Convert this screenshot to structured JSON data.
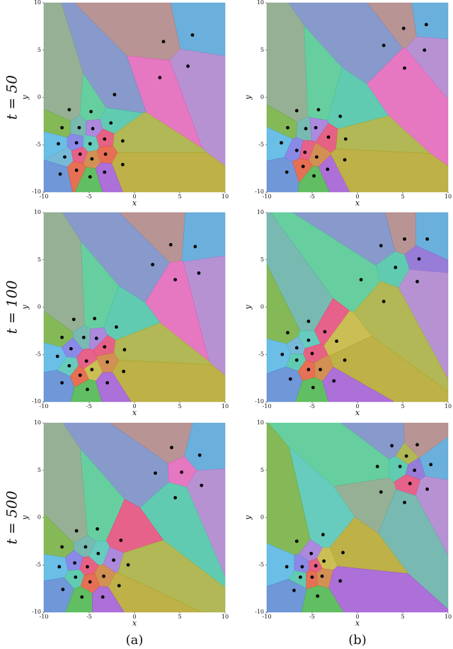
{
  "row_labels": [
    "t = 50",
    "t = 100",
    "t = 500"
  ],
  "column_labels": [
    "(a)",
    "(b)"
  ],
  "chart_data": [
    {
      "type": "scatter",
      "xlabel": "x",
      "ylabel": "y",
      "xlim": [
        -10,
        10
      ],
      "ylim": [
        -10,
        10
      ],
      "xticks": [
        -10,
        -5,
        0,
        5,
        10
      ],
      "yticks": [
        -10,
        -5,
        0,
        5,
        10
      ],
      "x": [
        6.4,
        3.2,
        5.9,
        2.8,
        -2.2,
        -7.2,
        -4.8,
        -2.6,
        -8.0,
        -6.1,
        -4.6,
        -3.3,
        -1.3,
        -8.4,
        -6.4,
        -4.9,
        -3.2,
        -7.7,
        -6.0,
        -4.7,
        -1.3,
        -8.2,
        -6.4,
        -4.9,
        -3.3
      ],
      "y": [
        6.6,
        5.9,
        3.3,
        2.1,
        0.3,
        -1.3,
        -1.5,
        -2.7,
        -3.2,
        -3.2,
        -3.3,
        -4.4,
        -4.6,
        -4.9,
        -4.8,
        -4.9,
        -6.0,
        -6.3,
        -6.0,
        -6.5,
        -7.1,
        -8.1,
        -7.7,
        -8.4,
        -7.9
      ],
      "colors": [
        "#4a9fd4",
        "#a87d7d",
        "#a77ac9",
        "#e05ab5",
        "#6c84c0",
        "#7f9f7f",
        "#45c48a",
        "#3ebfa0",
        "#6aa832",
        "#5aaaa0",
        "#9a6fd6",
        "#e0406a",
        "#a0a830",
        "#4ab0e0",
        "#7070e0",
        "#45c0b0",
        "#e05030",
        "#5aaad0",
        "#e04070",
        "#c87830",
        "#b0a020",
        "#5080d0",
        "#e05030",
        "#40b040",
        "#9a50d0"
      ]
    },
    {
      "type": "scatter",
      "xlabel": "x",
      "ylabel": "y",
      "xlim": [
        -10,
        10
      ],
      "ylim": [
        -10,
        10
      ],
      "xticks": [
        -10,
        -5,
        0,
        5,
        10
      ],
      "yticks": [
        -10,
        -5,
        0,
        5,
        10
      ],
      "x": [
        7.6,
        5.1,
        2.9,
        7.4,
        5.2,
        -1.9,
        -6.7,
        -4.3,
        -7.7,
        -5.7,
        -4.6,
        -3.2,
        -1.3,
        -8.4,
        -6.7,
        -5.8,
        -4.5,
        -3.3,
        -1.4,
        -7.8,
        -6.0,
        -4.8
      ],
      "y": [
        7.7,
        7.3,
        5.5,
        5.0,
        3.1,
        -2.0,
        -1.4,
        -1.3,
        -3.2,
        -3.3,
        -3.2,
        -4.2,
        -4.4,
        -4.8,
        -5.6,
        -5.8,
        -6.3,
        -7.6,
        -6.6,
        -7.9,
        -7.3,
        -8.3
      ],
      "colors": [
        "#4a9fd4",
        "#a87d7d",
        "#6c84c0",
        "#a77ac9",
        "#e05ab5",
        "#3ebfa0",
        "#7f9f7f",
        "#45c48a",
        "#6aa832",
        "#5aaaa0",
        "#9a6fd6",
        "#e0406a",
        "#a0a830",
        "#4ab0e0",
        "#7070e0",
        "#e04070",
        "#c87830",
        "#9a50d0",
        "#b0a020",
        "#5080d0",
        "#e05030",
        "#40b040"
      ]
    },
    {
      "type": "scatter",
      "xlabel": "x",
      "ylabel": "y",
      "xlim": [
        -10,
        10
      ],
      "ylim": [
        -10,
        10
      ],
      "xticks": [
        -10,
        -5,
        0,
        5,
        10
      ],
      "yticks": [
        -10,
        -5,
        0,
        5,
        10
      ],
      "x": [
        4.0,
        6.7,
        2.0,
        7.1,
        4.5,
        -4.4,
        -6.7,
        -2.0,
        -8.0,
        -5.6,
        -4.2,
        -3.3,
        -1.1,
        -8.5,
        -7.0,
        -5.3,
        -7.2,
        -3.0,
        -1.2,
        -6.0,
        -4.7,
        -8.0,
        -5.2,
        -3.0
      ],
      "y": [
        6.6,
        6.4,
        4.5,
        3.6,
        2.9,
        -1.2,
        -1.3,
        -2.1,
        -3.2,
        -3.2,
        -3.3,
        -4.2,
        -4.5,
        -5.2,
        -4.4,
        -5.7,
        -6.2,
        -5.8,
        -6.8,
        -7.2,
        -6.6,
        -8.0,
        -8.7,
        -8.0
      ],
      "colors": [
        "#a87d7d",
        "#4a9fd4",
        "#6c84c0",
        "#a77ac9",
        "#e05ab5",
        "#45c48a",
        "#7f9f7f",
        "#3ebfa0",
        "#6aa832",
        "#5aaaa0",
        "#9a6fd6",
        "#e0406a",
        "#a0a830",
        "#4ab0e0",
        "#7070e0",
        "#e04070",
        "#45c0b0",
        "#c87830",
        "#b0a020",
        "#e05030",
        "#c0b030",
        "#5080d0",
        "#40b040",
        "#9a50d0"
      ]
    },
    {
      "type": "scatter",
      "xlabel": "x",
      "ylabel": "y",
      "xlim": [
        -10,
        10
      ],
      "ylim": [
        -10,
        10
      ],
      "xticks": [
        -10,
        -5,
        0,
        5,
        10
      ],
      "yticks": [
        -10,
        -5,
        0,
        5,
        10
      ],
      "x": [
        5.2,
        7.7,
        2.6,
        6.8,
        4.2,
        6.6,
        0.4,
        2.9,
        -5.4,
        -7.7,
        -3.6,
        -5.4,
        -2.3,
        -8.3,
        -6.7,
        -5.0,
        -6.7,
        -4.1,
        -1.4,
        -7.4,
        -5.4,
        -4.9,
        -2.6
      ],
      "y": [
        7.2,
        7.2,
        6.5,
        5.1,
        4.2,
        2.7,
        2.9,
        0.6,
        -1.5,
        -2.7,
        -2.6,
        -3.5,
        -3.6,
        -5.0,
        -4.3,
        -4.9,
        -5.6,
        -6.6,
        -5.6,
        -7.6,
        -6.6,
        -8.5,
        -7.8
      ],
      "colors": [
        "#a87d7d",
        "#4a9fd4",
        "#6c84c0",
        "#8060d0",
        "#3ebfa0",
        "#a77ac9",
        "#45c48a",
        "#a0a830",
        "#5aaaa0",
        "#6aa832",
        "#e04070",
        "#45c0b0",
        "#c0b030",
        "#4ab0e0",
        "#5aaad0",
        "#e0406a",
        "#3ebfa0",
        "#c87830",
        "#b0a020",
        "#5080d0",
        "#e05030",
        "#40b040",
        "#9a50d0"
      ]
    },
    {
      "type": "scatter",
      "xlabel": "x",
      "ylabel": "y",
      "xlim": [
        -10,
        10
      ],
      "ylim": [
        -10,
        10
      ],
      "xticks": [
        -10,
        -5,
        0,
        5,
        10
      ],
      "yticks": [
        -10,
        -5,
        0,
        5,
        10
      ],
      "x": [
        4.1,
        7.2,
        2.3,
        5.2,
        7.4,
        4.5,
        -4.1,
        -6.4,
        -1.5,
        -8.0,
        -5.4,
        -4.0,
        -2.3,
        -0.7,
        -8.3,
        -6.6,
        -5.2,
        -6.5,
        -3.4,
        -1.7,
        -4.9,
        -7.9,
        -5.8,
        -3.5
      ],
      "y": [
        7.4,
        6.6,
        4.7,
        4.8,
        3.4,
        2.1,
        -1.2,
        -1.4,
        -2.4,
        -3.1,
        -3.1,
        -3.8,
        -4.5,
        -5.0,
        -5.2,
        -4.8,
        -5.2,
        -6.3,
        -6.2,
        -7.2,
        -6.8,
        -7.6,
        -8.4,
        -8.4
      ],
      "colors": [
        "#a87d7d",
        "#4a9fd4",
        "#6c84c0",
        "#e05ab5",
        "#a77ac9",
        "#3ebfa0",
        "#45c48a",
        "#7f9f7f",
        "#e04070",
        "#6aa832",
        "#5aaaa0",
        "#45c0b0",
        "#9a6fd6",
        "#a0a830",
        "#4ab0e0",
        "#7070e0",
        "#e0406a",
        "#3ebfa0",
        "#c87830",
        "#b0a020",
        "#e05030",
        "#5080d0",
        "#40b040",
        "#9a50d0"
      ]
    },
    {
      "type": "scatter",
      "xlabel": "x",
      "ylabel": "y",
      "xlim": [
        -10,
        10
      ],
      "ylim": [
        -10,
        10
      ],
      "xticks": [
        -10,
        -5,
        0,
        5,
        10
      ],
      "yticks": [
        -10,
        -5,
        0,
        5,
        10
      ],
      "x": [
        3.8,
        6.6,
        5.4,
        2.2,
        4.7,
        6.3,
        8.1,
        5.8,
        7.7,
        2.6,
        5.2,
        -3.8,
        -6.7,
        -1.6,
        -5.1,
        -3.7,
        -7.8,
        -6.1,
        -4.6,
        -6.3,
        -5.0,
        -3.9,
        -1.9,
        -7.0,
        -4.4
      ],
      "y": [
        7.6,
        7.7,
        6.5,
        5.4,
        5.4,
        5.0,
        5.6,
        3.6,
        3.0,
        2.7,
        1.6,
        -1.8,
        -2.5,
        -3.7,
        -3.8,
        -4.6,
        -5.2,
        -5.2,
        -5.1,
        -6.3,
        -6.3,
        -6.2,
        -6.7,
        -7.7,
        -8.3
      ],
      "colors": [
        "#6c84c0",
        "#a87d7d",
        "#a0a830",
        "#45c48a",
        "#3ebfa0",
        "#8060d0",
        "#4a9fd4",
        "#e04070",
        "#a77ac9",
        "#7f9f7f",
        "#5aaaa0",
        "#45c0b0",
        "#6aa832",
        "#b0a020",
        "#9a6fd6",
        "#c0b030",
        "#4ab0e0",
        "#7070e0",
        "#e0406a",
        "#3ebfa0",
        "#e05030",
        "#c87830",
        "#9a50d0",
        "#5080d0",
        "#40b040"
      ]
    }
  ]
}
